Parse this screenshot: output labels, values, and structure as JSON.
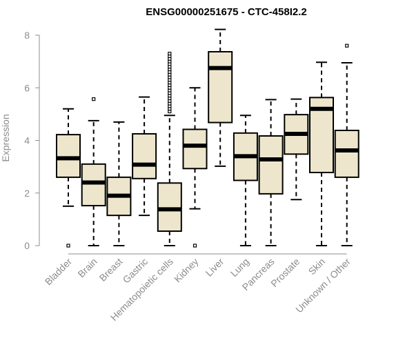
{
  "chart_data": {
    "type": "boxplot",
    "title": "ENSG00000251675 - CTC-458I2.2",
    "xlabel": "",
    "ylabel": "Expression",
    "ylim": [
      0,
      8.2
    ],
    "yticks": [
      0,
      2,
      4,
      6,
      8
    ],
    "box_fill": "#ede6cc",
    "median_color": "#000000",
    "axis_color": "#8c8c8c",
    "categories": [
      "Bladder",
      "Brain",
      "Breast",
      "Gastric",
      "Hematopoietic cells",
      "Kidney",
      "Liver",
      "Lung",
      "Pancreas",
      "Prostate",
      "Skin",
      "Unknown / Other"
    ],
    "boxes": [
      {
        "category": "Bladder",
        "whisker_low": 1.5,
        "q1": 2.6,
        "median": 3.32,
        "q3": 4.22,
        "whisker_high": 5.2,
        "outliers": [
          0.0
        ]
      },
      {
        "category": "Brain",
        "whisker_low": 0.0,
        "q1": 1.52,
        "median": 2.4,
        "q3": 3.1,
        "whisker_high": 4.75,
        "outliers": [
          5.57
        ]
      },
      {
        "category": "Breast",
        "whisker_low": 0.0,
        "q1": 1.15,
        "median": 1.9,
        "q3": 2.6,
        "whisker_high": 4.7,
        "outliers": []
      },
      {
        "category": "Gastric",
        "whisker_low": 1.15,
        "q1": 2.55,
        "median": 3.08,
        "q3": 4.25,
        "whisker_high": 5.65,
        "outliers": []
      },
      {
        "category": "Hematopoietic cells",
        "whisker_low": 0.0,
        "q1": 0.55,
        "median": 1.38,
        "q3": 2.38,
        "whisker_high": 4.95,
        "outliers": [
          5.1,
          5.2,
          5.3,
          5.4,
          5.5,
          5.6,
          5.7,
          5.8,
          5.9,
          6.0,
          6.1,
          6.2,
          6.3,
          6.4,
          6.5,
          6.6,
          6.7,
          6.8,
          6.9,
          7.0,
          7.1,
          7.2,
          7.3
        ]
      },
      {
        "category": "Kidney",
        "whisker_low": 1.4,
        "q1": 2.93,
        "median": 3.8,
        "q3": 4.42,
        "whisker_high": 6.0,
        "outliers": [
          0.0
        ]
      },
      {
        "category": "Liver",
        "whisker_low": 3.02,
        "q1": 4.68,
        "median": 6.75,
        "q3": 7.37,
        "whisker_high": 8.22,
        "outliers": []
      },
      {
        "category": "Lung",
        "whisker_low": 0.0,
        "q1": 2.48,
        "median": 3.4,
        "q3": 4.28,
        "whisker_high": 4.95,
        "outliers": []
      },
      {
        "category": "Pancreas",
        "whisker_low": 0.0,
        "q1": 1.97,
        "median": 3.28,
        "q3": 4.17,
        "whisker_high": 5.55,
        "outliers": []
      },
      {
        "category": "Prostate",
        "whisker_low": 1.75,
        "q1": 3.48,
        "median": 4.25,
        "q3": 4.98,
        "whisker_high": 5.57,
        "outliers": []
      },
      {
        "category": "Skin",
        "whisker_low": 0.0,
        "q1": 2.78,
        "median": 5.2,
        "q3": 5.63,
        "whisker_high": 6.97,
        "outliers": []
      },
      {
        "category": "Unknown / Other",
        "whisker_low": 0.0,
        "q1": 2.6,
        "median": 3.62,
        "q3": 4.38,
        "whisker_high": 6.95,
        "outliers": [
          7.6
        ]
      }
    ]
  }
}
